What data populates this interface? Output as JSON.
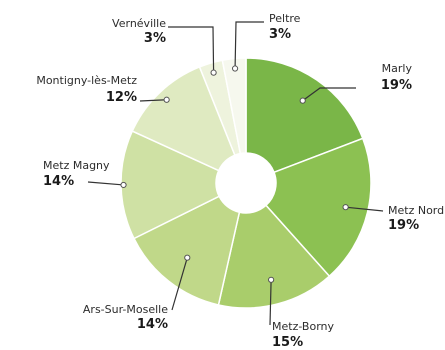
{
  "chart_data": {
    "type": "pie",
    "donut": true,
    "order": "clockwise-from-top",
    "slices": [
      {
        "label": "Marly",
        "pct_label": "19%",
        "value": 19,
        "color": "#7ab648"
      },
      {
        "label": "Metz Nord",
        "pct_label": "19%",
        "value": 19,
        "color": "#8cc152"
      },
      {
        "label": "Metz-Borny",
        "pct_label": "15%",
        "value": 15,
        "color": "#a9cd6b"
      },
      {
        "label": "Ars-Sur-Moselle",
        "pct_label": "14%",
        "value": 14,
        "color": "#c0d889"
      },
      {
        "label": "Metz Magny",
        "pct_label": "14%",
        "value": 14,
        "color": "#cfe1a4"
      },
      {
        "label": "Montigny-lès-Metz",
        "pct_label": "12%",
        "value": 12,
        "color": "#dfeac1"
      },
      {
        "label": "Vernéville",
        "pct_label": "3%",
        "value": 3,
        "color": "#eef3dd"
      },
      {
        "label": "Peltre",
        "pct_label": "3%",
        "value": 3,
        "color": "#f6f8ee"
      }
    ]
  }
}
